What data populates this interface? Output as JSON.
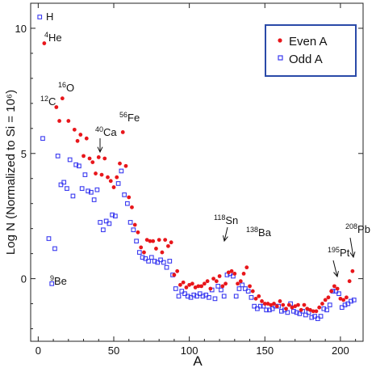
{
  "chart_data": {
    "type": "scatter",
    "xlabel": "A",
    "ylabel": "Log N (Normalized to Si = 10⁶)",
    "xlim": [
      -5,
      215
    ],
    "ylim": [
      -2.5,
      11
    ],
    "x_ticks": [
      0,
      50,
      100,
      150,
      200
    ],
    "y_ticks": [
      0,
      5,
      10
    ],
    "grid": false,
    "legend_position": "top-right",
    "colors": {
      "even": "#e8161b",
      "odd": "#3a3af0",
      "frame": "#222222",
      "legend_border": "#2a4aa8"
    },
    "series": [
      {
        "name": "Even A",
        "marker": "filled-circle",
        "color": "#e8161b",
        "x": [
          4,
          12,
          14,
          16,
          20,
          24,
          26,
          28,
          30,
          32,
          34,
          36,
          38,
          40,
          42,
          44,
          46,
          48,
          50,
          52,
          54,
          56,
          58,
          60,
          62,
          64,
          66,
          68,
          70,
          72,
          74,
          76,
          78,
          80,
          82,
          84,
          86,
          88,
          90,
          92,
          94,
          96,
          98,
          100,
          102,
          104,
          106,
          108,
          110,
          112,
          114,
          116,
          118,
          120,
          122,
          124,
          126,
          128,
          130,
          132,
          134,
          136,
          138,
          140,
          142,
          144,
          146,
          148,
          150,
          152,
          154,
          156,
          158,
          160,
          162,
          164,
          166,
          168,
          170,
          172,
          174,
          176,
          178,
          180,
          182,
          184,
          186,
          188,
          190,
          192,
          194,
          196,
          198,
          200,
          202,
          204,
          206,
          208
        ],
        "y": [
          9.4,
          6.85,
          6.3,
          7.2,
          6.3,
          5.95,
          5.5,
          5.75,
          4.9,
          5.6,
          4.8,
          4.65,
          4.2,
          4.85,
          4.15,
          4.8,
          4.05,
          3.9,
          3.65,
          4.05,
          4.6,
          5.85,
          4.5,
          3.25,
          2.85,
          2.15,
          1.85,
          1.25,
          1.05,
          1.55,
          1.5,
          1.5,
          1.2,
          1.55,
          1.05,
          1.55,
          1.3,
          1.45,
          0.15,
          0.3,
          -0.25,
          -0.15,
          -0.35,
          -0.25,
          -0.2,
          -0.35,
          -0.3,
          -0.3,
          -0.2,
          -0.1,
          -0.4,
          0,
          -0.1,
          0.1,
          -0.3,
          -0.2,
          0.25,
          0.3,
          0.2,
          -0.2,
          -0.1,
          0.2,
          0.45,
          -0.3,
          -0.5,
          -0.8,
          -0.7,
          -0.9,
          -1,
          -1,
          -1.05,
          -1,
          -1.1,
          -0.9,
          -1.05,
          -1.2,
          -1.05,
          -1.15,
          -1.1,
          -1.05,
          -1.25,
          -1.05,
          -1.2,
          -1.25,
          -1.3,
          -1.3,
          -1.15,
          -1,
          -0.85,
          -0.75,
          -0.5,
          -0.3,
          -0.4,
          -0.8,
          -0.85,
          -0.75,
          -0.1,
          0.3
        ]
      },
      {
        "name": "Odd A",
        "marker": "open-square",
        "color": "#3a3af0",
        "x": [
          1,
          3,
          7,
          9,
          11,
          13,
          15,
          17,
          19,
          21,
          23,
          25,
          27,
          29,
          31,
          33,
          35,
          37,
          39,
          41,
          43,
          45,
          47,
          49,
          51,
          53,
          55,
          57,
          59,
          61,
          63,
          65,
          67,
          69,
          71,
          73,
          75,
          77,
          79,
          81,
          83,
          85,
          87,
          89,
          91,
          93,
          95,
          97,
          99,
          101,
          103,
          105,
          107,
          109,
          111,
          113,
          115,
          117,
          119,
          121,
          123,
          125,
          127,
          129,
          131,
          133,
          135,
          137,
          139,
          141,
          143,
          145,
          147,
          149,
          151,
          153,
          155,
          157,
          159,
          161,
          163,
          165,
          167,
          169,
          171,
          173,
          175,
          177,
          179,
          181,
          183,
          185,
          187,
          189,
          191,
          193,
          195,
          197,
          199,
          201,
          203,
          205,
          207,
          209
        ],
        "y": [
          10.45,
          5.6,
          1.6,
          -0.2,
          1.2,
          4.9,
          3.75,
          3.85,
          3.6,
          4.75,
          3.3,
          4.55,
          4.5,
          3.6,
          4.15,
          3.5,
          3.45,
          3.15,
          3.55,
          2.25,
          1.95,
          2.3,
          2.2,
          2.55,
          2.5,
          3.8,
          4.3,
          3.35,
          3,
          2.25,
          1.95,
          1.5,
          1.05,
          0.85,
          0.8,
          0.7,
          0.85,
          0.7,
          0.65,
          0.75,
          0.65,
          0.45,
          0.7,
          0.15,
          -0.4,
          -0.7,
          -0.5,
          -0.6,
          -0.7,
          -0.75,
          -0.65,
          -0.7,
          -0.6,
          -0.7,
          -0.65,
          -0.75,
          -0.45,
          -0.8,
          -0.3,
          -0.45,
          -0.7,
          0.15,
          0.2,
          0.1,
          -0.7,
          -0.4,
          -0.25,
          -0.4,
          -0.5,
          -0.75,
          -1.1,
          -1.2,
          -1.1,
          -1.1,
          -1.25,
          -1.25,
          -1.2,
          -1.1,
          -1.1,
          -1.3,
          -1.25,
          -1.35,
          -1,
          -1.3,
          -1.35,
          -1.4,
          -1.3,
          -1.45,
          -1.35,
          -1.55,
          -1.5,
          -1.6,
          -1.5,
          -1.2,
          -1.25,
          -1.05,
          -0.5,
          -0.5,
          -0.6,
          -1.15,
          -1.05,
          -1,
          -0.9,
          -0.85
        ]
      }
    ],
    "annotations": [
      {
        "mass": "",
        "symbol": "H",
        "arrow": false
      },
      {
        "mass": "4",
        "symbol": "He",
        "arrow": false
      },
      {
        "mass": "16",
        "symbol": "O",
        "arrow": false
      },
      {
        "mass": "12",
        "symbol": "C",
        "arrow": false
      },
      {
        "mass": "56",
        "symbol": "Fe",
        "arrow": false
      },
      {
        "mass": "40",
        "symbol": "Ca",
        "arrow": true
      },
      {
        "mass": "9",
        "symbol": "Be",
        "arrow": false
      },
      {
        "mass": "118",
        "symbol": "Sn",
        "arrow": true
      },
      {
        "mass": "138",
        "symbol": "Ba",
        "arrow": false
      },
      {
        "mass": "195",
        "symbol": "Pt",
        "arrow": true
      },
      {
        "mass": "208",
        "symbol": "Pb",
        "arrow": true
      }
    ]
  }
}
